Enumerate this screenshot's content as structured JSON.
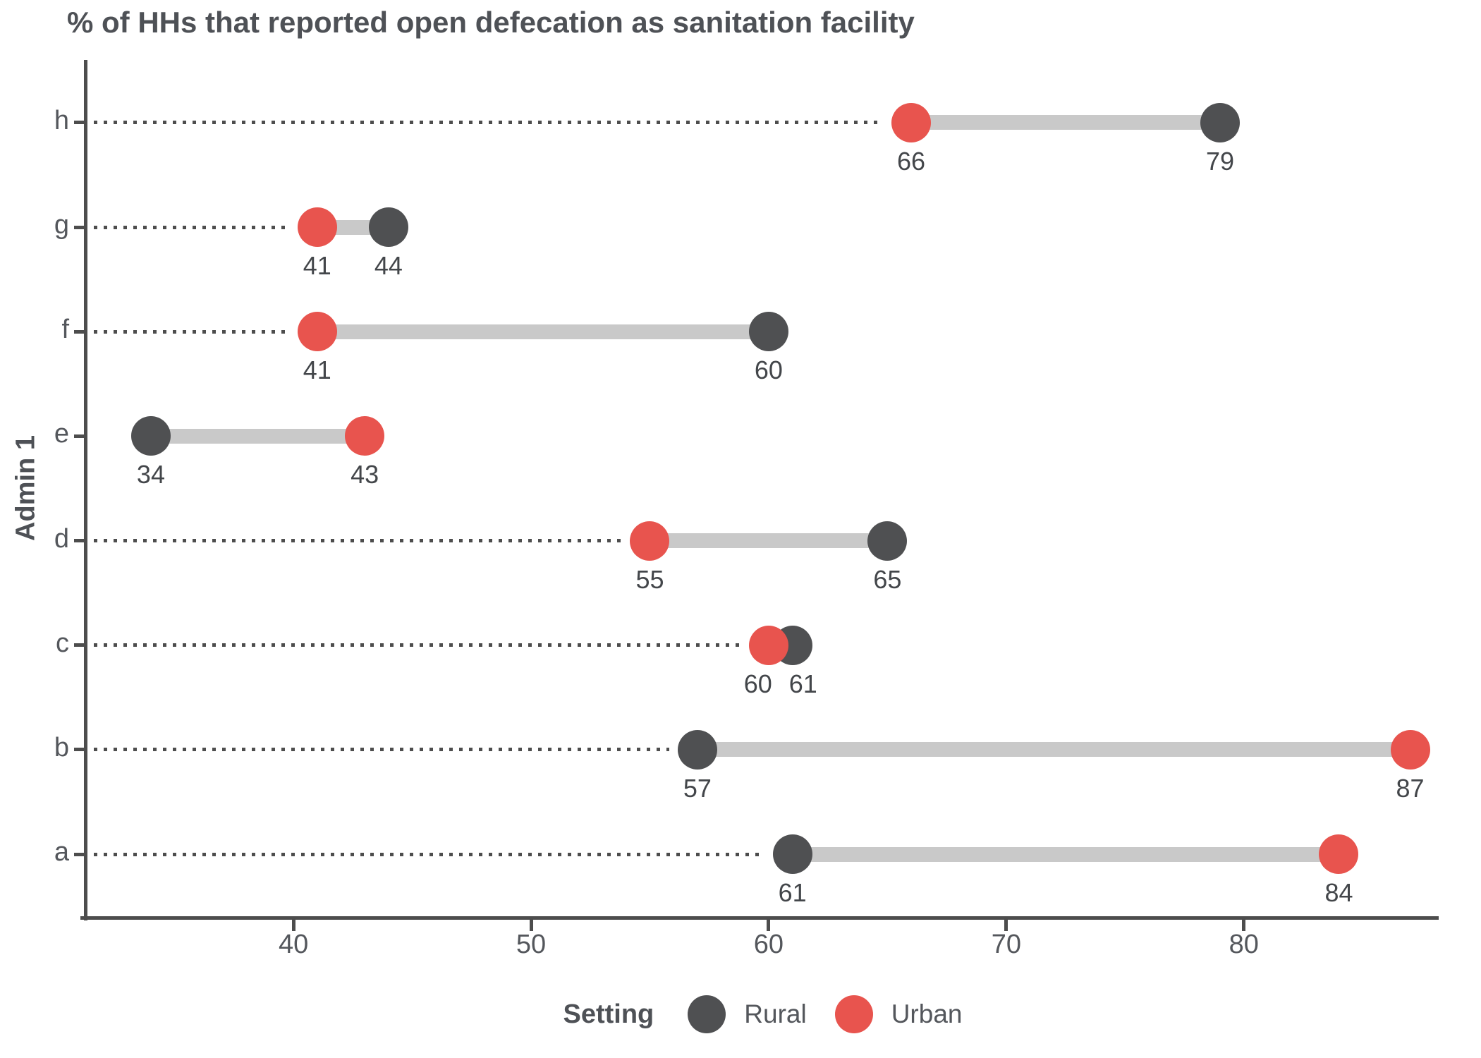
{
  "title": "% of HHs that reported open defecation as sanitation facility",
  "chart_data": {
    "type": "scatter",
    "variant": "dumbbell",
    "title": "% of HHs that reported open defecation as sanitation facility",
    "xlabel": "",
    "ylabel": "Admin 1",
    "categories_top_to_bottom": [
      "h",
      "g",
      "f",
      "e",
      "d",
      "c",
      "b",
      "a"
    ],
    "series": [
      {
        "name": "Rural",
        "color": "#4f5052",
        "values": [
          79,
          44,
          60,
          34,
          65,
          61,
          57,
          61
        ]
      },
      {
        "name": "Urban",
        "color": "#e8544e",
        "values": [
          66,
          41,
          41,
          43,
          55,
          60,
          87,
          84
        ]
      }
    ],
    "x_ticks": [
      40,
      50,
      60,
      70,
      80
    ],
    "xlim": [
      31.3,
      88.2
    ],
    "grid": "off",
    "legend": {
      "title": "Setting",
      "position": "bottom",
      "entries": [
        "Rural",
        "Urban"
      ]
    },
    "style": {
      "connector_color": "#c9c9c9",
      "leader_line": "dotted, from y-axis to leftmost point",
      "axis_color": "#4d4d4d",
      "tick_text_color": "#54575c",
      "value_label_color": "#43464a",
      "title_color": "#4e5156"
    }
  }
}
